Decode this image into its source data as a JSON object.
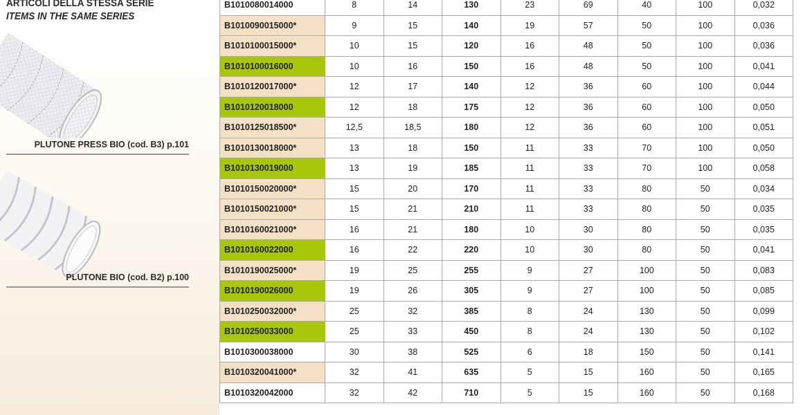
{
  "sidebar": {
    "title_it": "ARTICOLI DELLA STESSA SERIE",
    "title_en": "ITEMS IN THE SAME SERIES",
    "products": [
      {
        "label": "PLUTONE PRESS BIO (cod. B3) p.101",
        "image": "braided-hose-image"
      },
      {
        "label": "PLUTONE BIO (cod. B2) p.100",
        "image": "spiral-hose-image"
      }
    ]
  },
  "colors": {
    "white": "#ffffff",
    "beige": "#f4e0c4",
    "green": "#a8c60a"
  },
  "table": {
    "rows": [
      {
        "code": "B1010080014000",
        "hl": "white",
        "v": [
          "8",
          "14",
          "130",
          "23",
          "69",
          "40",
          "100",
          "0,032"
        ]
      },
      {
        "code": "B1010090015000*",
        "hl": "beige",
        "v": [
          "9",
          "15",
          "140",
          "19",
          "57",
          "50",
          "100",
          "0,036"
        ]
      },
      {
        "code": "B1010100015000*",
        "hl": "beige",
        "v": [
          "10",
          "15",
          "120",
          "16",
          "48",
          "50",
          "100",
          "0,036"
        ]
      },
      {
        "code": "B1010100016000",
        "hl": "green",
        "v": [
          "10",
          "16",
          "150",
          "16",
          "48",
          "50",
          "100",
          "0,041"
        ]
      },
      {
        "code": "B1010120017000*",
        "hl": "beige",
        "v": [
          "12",
          "17",
          "140",
          "12",
          "36",
          "60",
          "100",
          "0,044"
        ]
      },
      {
        "code": "B1010120018000",
        "hl": "green",
        "v": [
          "12",
          "18",
          "175",
          "12",
          "36",
          "60",
          "100",
          "0,050"
        ]
      },
      {
        "code": "B1010125018500*",
        "hl": "beige",
        "v": [
          "12,5",
          "18,5",
          "180",
          "12",
          "36",
          "60",
          "100",
          "0,051"
        ]
      },
      {
        "code": "B1010130018000*",
        "hl": "beige",
        "v": [
          "13",
          "18",
          "150",
          "11",
          "33",
          "70",
          "100",
          "0,050"
        ]
      },
      {
        "code": "B1010130019000",
        "hl": "green",
        "v": [
          "13",
          "19",
          "185",
          "11",
          "33",
          "70",
          "100",
          "0,058"
        ]
      },
      {
        "code": "B1010150020000*",
        "hl": "beige",
        "v": [
          "15",
          "20",
          "170",
          "11",
          "33",
          "80",
          "50",
          "0,034"
        ]
      },
      {
        "code": "B1010150021000*",
        "hl": "beige",
        "v": [
          "15",
          "21",
          "210",
          "11",
          "33",
          "80",
          "50",
          "0,035"
        ]
      },
      {
        "code": "B1010160021000*",
        "hl": "beige",
        "v": [
          "16",
          "21",
          "180",
          "10",
          "30",
          "80",
          "50",
          "0,035"
        ]
      },
      {
        "code": "B1010160022000",
        "hl": "green",
        "v": [
          "16",
          "22",
          "220",
          "10",
          "30",
          "80",
          "50",
          "0,041"
        ]
      },
      {
        "code": "B1010190025000*",
        "hl": "beige",
        "v": [
          "19",
          "25",
          "255",
          "9",
          "27",
          "100",
          "50",
          "0,083"
        ]
      },
      {
        "code": "B1010190026000",
        "hl": "green",
        "v": [
          "19",
          "26",
          "305",
          "9",
          "27",
          "100",
          "50",
          "0,085"
        ]
      },
      {
        "code": "B1010250032000*",
        "hl": "beige",
        "v": [
          "25",
          "32",
          "385",
          "8",
          "24",
          "130",
          "50",
          "0,099"
        ]
      },
      {
        "code": "B1010250033000",
        "hl": "green",
        "v": [
          "25",
          "33",
          "450",
          "8",
          "24",
          "130",
          "50",
          "0,102"
        ]
      },
      {
        "code": "B1010300038000",
        "hl": "white",
        "v": [
          "30",
          "38",
          "525",
          "6",
          "18",
          "150",
          "50",
          "0,141"
        ]
      },
      {
        "code": "B1010320041000*",
        "hl": "beige",
        "v": [
          "32",
          "41",
          "635",
          "5",
          "15",
          "160",
          "50",
          "0,165"
        ]
      },
      {
        "code": "B1010320042000",
        "hl": "white",
        "v": [
          "32",
          "42",
          "710",
          "5",
          "15",
          "160",
          "50",
          "0,168"
        ]
      }
    ]
  }
}
